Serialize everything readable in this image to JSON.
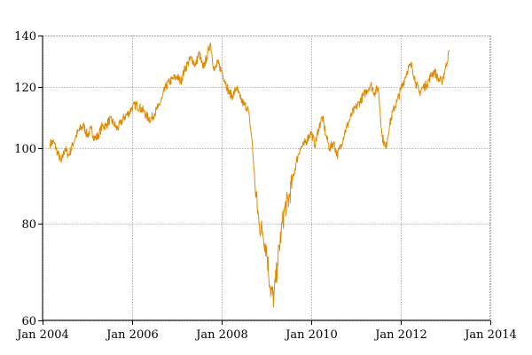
{
  "chart_data": {
    "type": "line",
    "title": "",
    "xlabel": "",
    "ylabel": "",
    "y_scale": "log",
    "xlim": [
      "2004-01-01",
      "2014-01-01"
    ],
    "ylim": [
      60,
      140
    ],
    "grid": true,
    "x_ticks": [
      "Jan 2004",
      "Jan 2006",
      "Jan 2008",
      "Jan 2010",
      "Jan 2012",
      "Jan 2014"
    ],
    "y_ticks": [
      "60",
      "80",
      "100",
      "120",
      "140"
    ],
    "colors": {
      "series": "#e08a00",
      "grid": "#9a9a9a"
    },
    "series": [
      {
        "x": [
          "2004-03-01",
          "2004-04-01",
          "2004-05-01",
          "2004-06-01",
          "2004-07-01",
          "2004-08-01",
          "2004-09-01",
          "2004-10-01",
          "2004-11-01",
          "2004-12-01",
          "2005-01-01",
          "2005-02-01",
          "2005-03-01",
          "2005-04-01",
          "2005-05-01",
          "2005-06-01",
          "2005-07-01",
          "2005-08-01",
          "2005-09-01",
          "2005-10-01",
          "2005-11-01",
          "2005-12-01",
          "2006-01-01",
          "2006-02-01",
          "2006-03-01",
          "2006-04-01",
          "2006-05-01",
          "2006-06-01",
          "2006-07-01",
          "2006-08-01",
          "2006-09-01",
          "2006-10-01",
          "2006-11-01",
          "2006-12-01",
          "2007-01-01",
          "2007-02-01",
          "2007-03-01",
          "2007-04-01",
          "2007-05-01",
          "2007-06-01",
          "2007-07-01",
          "2007-08-01",
          "2007-09-01",
          "2007-10-01",
          "2007-11-01",
          "2007-12-01",
          "2008-01-01",
          "2008-02-01",
          "2008-03-01",
          "2008-04-01",
          "2008-05-01",
          "2008-06-01",
          "2008-07-01",
          "2008-08-01",
          "2008-09-01",
          "2008-10-01",
          "2008-11-01",
          "2008-12-01",
          "2009-01-01",
          "2009-02-01",
          "2009-03-01",
          "2009-04-01",
          "2009-05-01",
          "2009-06-01",
          "2009-07-01",
          "2009-08-01",
          "2009-09-01",
          "2009-10-01",
          "2009-11-01",
          "2009-12-01",
          "2010-01-01",
          "2010-02-01",
          "2010-03-01",
          "2010-04-01",
          "2010-05-01",
          "2010-06-01",
          "2010-07-01",
          "2010-08-01",
          "2010-09-01",
          "2010-10-01",
          "2010-11-01",
          "2010-12-01",
          "2011-01-01",
          "2011-02-01",
          "2011-03-01",
          "2011-04-01",
          "2011-05-01",
          "2011-06-01",
          "2011-07-01",
          "2011-08-01",
          "2011-09-01",
          "2011-10-01",
          "2011-11-01",
          "2011-12-01",
          "2012-01-01",
          "2012-02-01",
          "2012-03-01",
          "2012-04-01",
          "2012-05-01",
          "2012-06-01",
          "2012-07-01",
          "2012-08-01",
          "2012-09-01",
          "2012-10-01",
          "2012-11-01",
          "2012-12-01",
          "2013-01-01",
          "2013-02-01"
        ],
        "values": [
          101.5,
          102,
          99,
          96,
          100,
          98,
          101,
          104,
          106,
          107,
          104,
          106,
          103,
          104,
          107,
          107,
          109,
          108,
          106,
          108,
          110,
          111,
          113,
          114,
          113,
          112,
          110,
          109,
          111,
          113,
          116,
          120,
          122,
          123,
          124,
          122,
          126,
          129,
          131,
          128,
          133,
          127,
          131,
          137,
          126,
          129,
          126,
          122,
          118,
          117,
          120,
          116,
          114,
          113,
          104,
          89,
          80,
          78,
          74,
          66,
          64,
          71,
          78,
          84,
          86,
          91,
          96,
          100,
          101,
          103,
          105,
          101,
          106,
          110,
          104,
          100,
          102,
          98,
          101,
          105,
          108,
          111,
          113,
          115,
          117,
          119,
          121,
          118,
          120,
          104,
          100,
          107,
          112,
          115,
          119,
          123,
          127,
          128,
          122,
          118,
          120,
          121,
          124,
          126,
          123,
          122,
          127,
          134
        ]
      }
    ]
  }
}
